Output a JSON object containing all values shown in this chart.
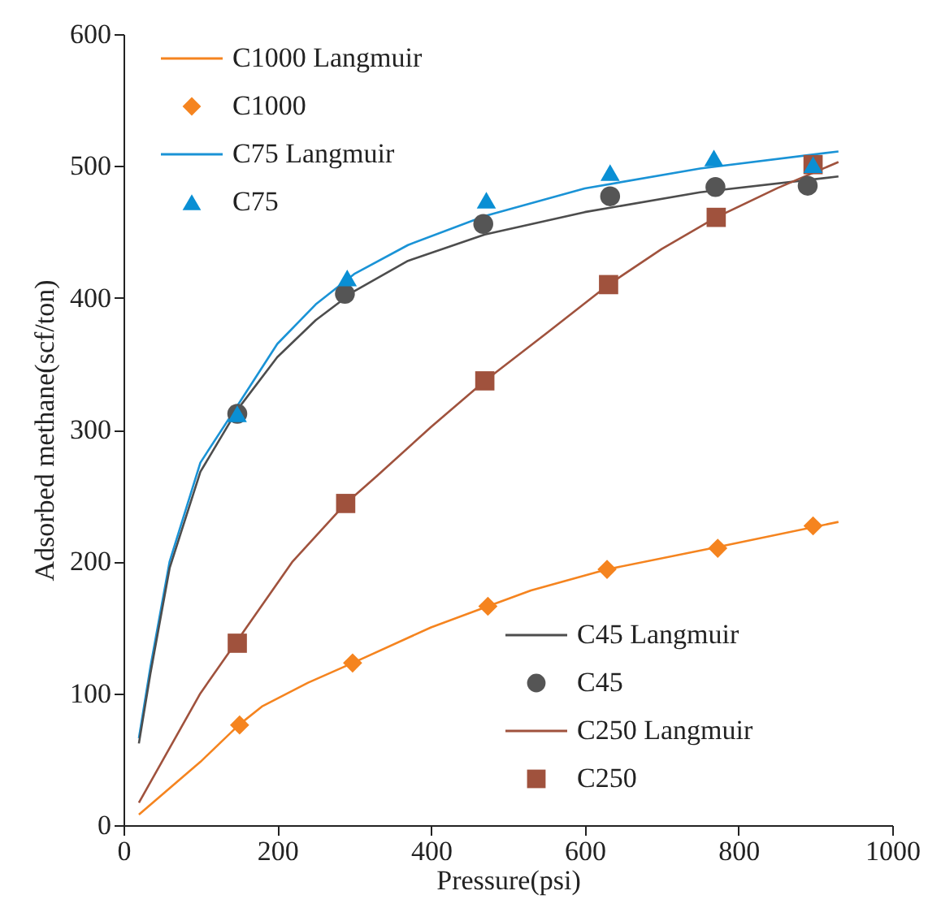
{
  "chart_data": {
    "type": "line",
    "xlabel": "Pressure(psi)",
    "ylabel": "Adsorbed methane(scf/ton)",
    "xlim": [
      0,
      1000
    ],
    "xticks": [
      0,
      200,
      400,
      600,
      800,
      1000
    ],
    "ylim": [
      0,
      600
    ],
    "yticks": [
      0,
      100,
      200,
      300,
      400,
      500,
      600
    ],
    "grid": false,
    "legend": "top left",
    "series": [
      {
        "name": "C1000 Langmuir",
        "color": "#f5841f",
        "x": [
          20,
          100,
          150,
          180,
          240,
          298,
          400,
          474,
          530,
          629,
          773,
          930
        ],
        "values": [
          8,
          48,
          76,
          90,
          108,
          123,
          150,
          166,
          178,
          194,
          211,
          230
        ]
      },
      {
        "name": "C1000",
        "type": "scatter",
        "marker": "diamond",
        "color": "#f5841f",
        "x": [
          151,
          298,
          474,
          629,
          773,
          897
        ],
        "values": [
          76,
          123,
          166,
          194,
          210,
          227
        ]
      },
      {
        "name": "C75 Langmuir",
        "color": "#1a93d6",
        "x": [
          20,
          35,
          60,
          100,
          148,
          200,
          250,
          300,
          370,
          470,
          600,
          750,
          930
        ],
        "values": [
          66,
          120,
          200,
          275,
          318,
          365,
          395,
          418,
          440,
          462,
          483,
          498,
          511
        ]
      },
      {
        "name": "C75",
        "type": "scatter",
        "marker": "triangle",
        "color": "#0a8fd4",
        "x": [
          148,
          291,
          472,
          633,
          768,
          897
        ],
        "values": [
          312,
          415,
          474,
          495,
          506,
          501
        ]
      },
      {
        "name": "C45 Langmuir",
        "color": "#4d4d4d",
        "x": [
          20,
          35,
          60,
          100,
          148,
          200,
          250,
          300,
          370,
          470,
          600,
          750,
          930
        ],
        "values": [
          62,
          115,
          195,
          268,
          315,
          355,
          383,
          405,
          428,
          448,
          465,
          480,
          492
        ]
      },
      {
        "name": "C45",
        "type": "scatter",
        "marker": "circle",
        "color": "#555555",
        "x": [
          148,
          288,
          468,
          633,
          770,
          890
        ],
        "values": [
          312,
          403,
          456,
          477,
          484,
          485
        ]
      },
      {
        "name": "C250 Langmuir",
        "color": "#a0523d",
        "x": [
          20,
          100,
          148,
          220,
          289,
          330,
          400,
          470,
          550,
          631,
          700,
          771,
          850,
          930
        ],
        "values": [
          17,
          100,
          140,
          200,
          244,
          265,
          302,
          337,
          373,
          410,
          437,
          461,
          483,
          503
        ]
      },
      {
        "name": "C250",
        "type": "scatter",
        "marker": "square",
        "color": "#a0523d",
        "x": [
          148,
          289,
          470,
          631,
          771,
          897
        ],
        "values": [
          138,
          244,
          337,
          410,
          461,
          501
        ]
      }
    ]
  }
}
